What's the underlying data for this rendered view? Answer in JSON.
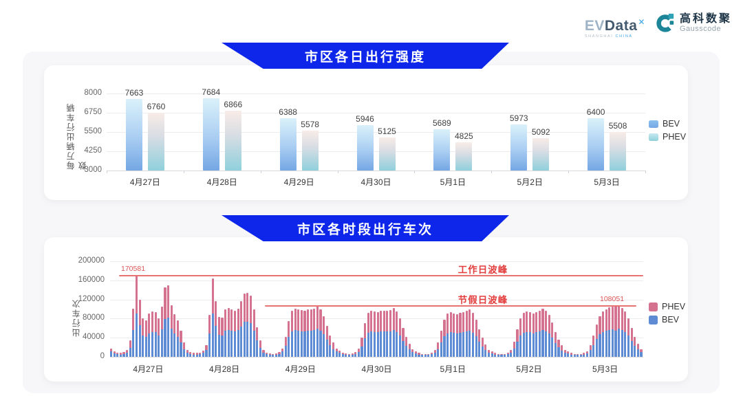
{
  "header": {
    "evdata": {
      "ev": "EV",
      "data": "Data",
      "sup": "✕",
      "tagline_left": "SHANGHAI",
      "tagline_right": "CHINA"
    },
    "gausscode": {
      "cn": "高科数聚",
      "en": "Gausscode"
    }
  },
  "colors": {
    "banner_blue": "#0d26ea",
    "daily_bev_gradient": [
      "#daf1fa",
      "#74a7e4"
    ],
    "daily_phev_gradient": [
      "#f8ece7",
      "#8fd0dc"
    ],
    "hourly_bev": "#5d8bd4",
    "hourly_phev": "#d4728f",
    "peak_red": "#e23c3c"
  },
  "chart_data": [
    {
      "id": "daily_intensity",
      "type": "bar",
      "title": "市区各日出行强度",
      "ylabel": "每万辆出行车辆数",
      "ylim": [
        3000,
        8000
      ],
      "yticks": [
        3000,
        4250,
        5500,
        6750,
        8000
      ],
      "grid": true,
      "legend_position": "right",
      "categories": [
        "4月27日",
        "4月28日",
        "4月29日",
        "4月30日",
        "5月1日",
        "5月2日",
        "5月3日"
      ],
      "series": [
        {
          "name": "BEV",
          "values": [
            7663,
            7684,
            6388,
            5946,
            5689,
            5973,
            6400
          ]
        },
        {
          "name": "PHEV",
          "values": [
            6760,
            6866,
            5578,
            5125,
            4825,
            5092,
            5508
          ]
        }
      ]
    },
    {
      "id": "hourly_trips",
      "type": "bar",
      "stacked": true,
      "title": "市区各时段出行车次",
      "ylabel": "出行车次",
      "ylim": [
        0,
        200000
      ],
      "yticks": [
        0,
        40000,
        80000,
        120000,
        160000,
        200000
      ],
      "grid": true,
      "legend_position": "right",
      "categories": [
        "4月27日",
        "4月28日",
        "4月29日",
        "4月30日",
        "5月1日",
        "5月2日",
        "5月3日"
      ],
      "hours_per_day": 24,
      "legend_order": [
        "PHEV",
        "BEV"
      ],
      "annotations": {
        "workday_peak": {
          "label": "工作日波峰",
          "value": 170581,
          "value_label": "170581"
        },
        "holiday_peak": {
          "label": "节假日波峰",
          "value": 108051,
          "value_label": "108051"
        }
      },
      "series": [
        {
          "name": "BEV",
          "values_by_day": [
            [
              11200,
              6800,
              5600,
              5000,
              6200,
              9300,
              19300,
              55600,
              91000,
              65500,
              44000,
              41800,
              49500,
              52300,
              51200,
              44600,
              57800,
              79800,
              82000,
              59400,
              49000,
              41800,
              30300,
              16500
            ],
            [
              9300,
              6200,
              5000,
              5000,
              5600,
              8100,
              13800,
              48400,
              90200,
              64400,
              45700,
              45100,
              55000,
              56100,
              54500,
              53400,
              55600,
              63800,
              73200,
              73700,
              70400,
              55000,
              34100,
              19300
            ],
            [
              8700,
              5600,
              4300,
              3700,
              4300,
              6200,
              11200,
              23100,
              41300,
              52800,
              55600,
              54500,
              53900,
              52800,
              55000,
              55000,
              55600,
              58300,
              54500,
              46800,
              35800,
              24800,
              16500,
              11200
            ],
            [
              8100,
              5600,
              4300,
              3700,
              4300,
              6200,
              10500,
              22000,
              38500,
              50600,
              53400,
              52300,
              51200,
              52800,
              53400,
              52800,
              53900,
              56100,
              52300,
              44000,
              33000,
              23100,
              15400,
              9900
            ],
            [
              7400,
              5000,
              3700,
              3700,
              3700,
              5600,
              8700,
              16500,
              30300,
              42900,
              49500,
              51200,
              50100,
              49000,
              50600,
              51700,
              52800,
              54500,
              50600,
              42900,
              31900,
              22000,
              14300,
              9300
            ],
            [
              7400,
              5000,
              3700,
              3700,
              3700,
              5600,
              8700,
              17600,
              31900,
              44000,
              50600,
              52300,
              51200,
              49500,
              51700,
              53400,
              55600,
              52800,
              48400,
              39600,
              28600,
              19800,
              13200,
              8700
            ],
            [
              6800,
              5000,
              3700,
              3700,
              3700,
              5000,
              7400,
              13800,
              24800,
              37400,
              46800,
              52300,
              55000,
              56700,
              57800,
              54000,
              58300,
              56100,
              52300,
              44000,
              33000,
              23100,
              15400,
              9900
            ]
          ]
        },
        {
          "name": "PHEV",
          "values_by_day": [
            [
              6800,
              4200,
              3400,
              3000,
              3800,
              5700,
              15700,
              45400,
              79581,
              53500,
              36000,
              34200,
              40500,
              42700,
              41800,
              36400,
              47200,
              65200,
              67000,
              48600,
              40000,
              34200,
              24700,
              13500
            ],
            [
              5700,
              3800,
              3000,
              3000,
              3400,
              4900,
              11200,
              39600,
              73800,
              52600,
              37300,
              36900,
              45000,
              45900,
              44500,
              43600,
              45400,
              52200,
              59800,
              60300,
              57600,
              45000,
              27900,
              15700
            ],
            [
              5300,
              3400,
              2700,
              2300,
              2700,
              3800,
              6800,
              18900,
              33700,
              43200,
              45400,
              44500,
              44100,
              43200,
              45000,
              45000,
              45400,
              47700,
              44500,
              38200,
              29200,
              20200,
              13500,
              6800
            ],
            [
              4900,
              3400,
              2700,
              2300,
              2700,
              3800,
              6500,
              18000,
              31500,
              41400,
              43600,
              42700,
              41800,
              43200,
              43600,
              43200,
              44100,
              45900,
              42700,
              36000,
              27000,
              18900,
              12600,
              6100
            ],
            [
              4600,
              3000,
              2300,
              2300,
              2300,
              3400,
              5300,
              13500,
              24700,
              35100,
              40500,
              41800,
              40900,
              40000,
              41400,
              42300,
              43200,
              44500,
              41400,
              35100,
              26100,
              18000,
              11700,
              5700
            ],
            [
              4600,
              3000,
              2300,
              2300,
              2300,
              3400,
              5300,
              14400,
              26100,
              36000,
              41400,
              42700,
              41800,
              40500,
              42300,
              43600,
              45400,
              43200,
              39600,
              32400,
              23400,
              16200,
              10800,
              5300
            ],
            [
              4200,
              3000,
              2300,
              2300,
              2300,
              3000,
              4600,
              11200,
              20200,
              30600,
              38200,
              42700,
              45000,
              46300,
              47200,
              54051,
              47700,
              45900,
              42700,
              36000,
              27000,
              18900,
              12600,
              6100
            ]
          ]
        }
      ]
    }
  ]
}
